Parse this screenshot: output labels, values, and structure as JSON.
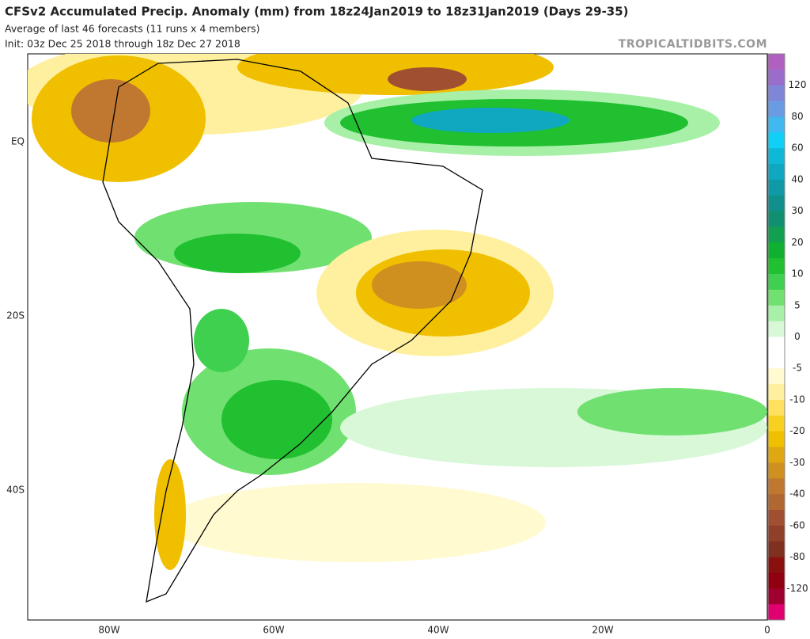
{
  "header": {
    "title": "CFSv2 Accumulated Precip. Anomaly (mm) from 18z24Jan2019 to 18z31Jan2019 (Days 29-35)",
    "subtitle": "Average of last 46 forecasts (11 runs x 4 members)",
    "init": "Init: 03z Dec 25 2018 through 18z Dec 27 2018",
    "watermark": "TROPICALTIDBITS.COM"
  },
  "map": {
    "lon_labels": [
      "80W",
      "60W",
      "40W",
      "20W",
      "0"
    ],
    "lat_labels": [
      "EQ",
      "20S",
      "40S"
    ]
  },
  "colorbar": {
    "labels": [
      "120",
      "80",
      "60",
      "40",
      "30",
      "20",
      "10",
      "5",
      "0",
      "-5",
      "-10",
      "-20",
      "-30",
      "-40",
      "-60",
      "-80",
      "-120"
    ],
    "colors": [
      "#b060c0",
      "#9a6ccc",
      "#7f86d8",
      "#6a9ce4",
      "#40b8f0",
      "#10d0f8",
      "#10b8d8",
      "#10a8c0",
      "#109aa8",
      "#10908c",
      "#109070",
      "#10a050",
      "#10b030",
      "#20c030",
      "#40d050",
      "#70e070",
      "#a8f0a8",
      "#d8f8d8",
      "#ffffff",
      "#ffffff",
      "#fffad0",
      "#fff0a0",
      "#ffe060",
      "#f8d020",
      "#f0c000",
      "#e0a810",
      "#d09020",
      "#c07830",
      "#b06830",
      "#a05030",
      "#904028",
      "#803020",
      "#8a1010",
      "#900010",
      "#a00030",
      "#e00070"
    ]
  }
}
